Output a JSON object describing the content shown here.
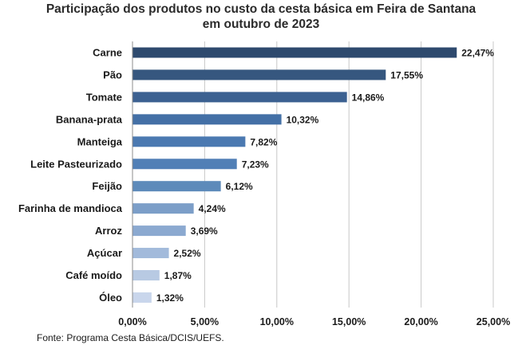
{
  "chart_data": {
    "type": "bar",
    "orientation": "horizontal",
    "title_lines": [
      "Participação dos produtos no custo da cesta básica em Feira de Santana",
      "em outubro de 2023"
    ],
    "categories": [
      "Carne",
      "Pão",
      "Tomate",
      "Banana-prata",
      "Manteiga",
      "Leite Pasteurizado",
      "Feijão",
      "Farinha de mandioca",
      "Arroz",
      "Açúcar",
      "Café moído",
      "Óleo"
    ],
    "values": [
      22.47,
      17.55,
      14.86,
      10.32,
      7.82,
      7.23,
      6.12,
      4.24,
      3.69,
      2.52,
      1.87,
      1.32
    ],
    "value_labels": [
      "22,47%",
      "17,55%",
      "14,86%",
      "10,32%",
      "7,82%",
      "7,23%",
      "6,12%",
      "4,24%",
      "3,69%",
      "2,52%",
      "1,87%",
      "1,32%"
    ],
    "xlim": [
      0,
      25
    ],
    "xticks": [
      0,
      5,
      10,
      15,
      20,
      25
    ],
    "xtick_labels": [
      "0,00%",
      "5,00%",
      "10,00%",
      "15,00%",
      "20,00%",
      "25,00%"
    ],
    "grid": true,
    "bar_colors": [
      "#2e4a6e",
      "#36577f",
      "#3c6191",
      "#4470a6",
      "#4b79b1",
      "#517fb6",
      "#5d8aba",
      "#7c9ec8",
      "#8ba9d0",
      "#a2badb",
      "#b8cae3",
      "#c9d6ec"
    ],
    "source": "Fonte: Programa Cesta Básica/DCIS/UEFS."
  }
}
